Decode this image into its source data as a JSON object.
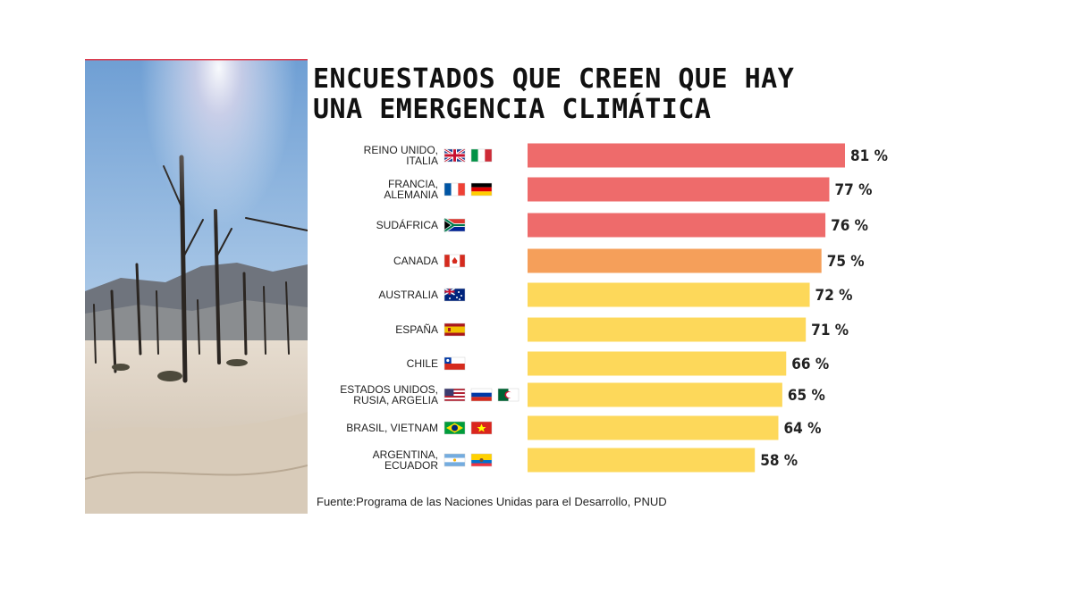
{
  "title_lines": [
    "ENCUESTADOS QUE CREEN QUE HAY",
    "UNA EMERGENCIA CLIMÁTICA"
  ],
  "source": "Fuente:Programa de las Naciones Unidas para el Desarrollo, PNUD",
  "photo": {
    "icon": "dead-trees-desert-photo"
  },
  "chart_data": {
    "type": "bar",
    "orientation": "horizontal",
    "title": "ENCUESTADOS QUE CREEN QUE HAY UNA EMERGENCIA CLIMÁTICA",
    "xlabel": "",
    "ylabel": "",
    "xlim": [
      0,
      81
    ],
    "grid": false,
    "categories": [
      {
        "label_lines": [
          "REINO UNIDO,",
          "ITALIA"
        ],
        "flags": [
          "uk",
          "italy"
        ],
        "value": 81,
        "value_label": "81 %",
        "color": "#EE6B6B"
      },
      {
        "label_lines": [
          "FRANCIA,",
          "ALEMANIA"
        ],
        "flags": [
          "france",
          "germany"
        ],
        "value": 77,
        "value_label": "77 %",
        "color": "#EE6B6B"
      },
      {
        "label_lines": [
          "SUDÁFRICA"
        ],
        "flags": [
          "south-africa"
        ],
        "value": 76,
        "value_label": "76 %",
        "color": "#EE6B6B"
      },
      {
        "label_lines": [
          "CANADA"
        ],
        "flags": [
          "canada"
        ],
        "value": 75,
        "value_label": "75 %",
        "color": "#F59F5A"
      },
      {
        "label_lines": [
          "AUSTRALIA"
        ],
        "flags": [
          "australia"
        ],
        "value": 72,
        "value_label": "72 %",
        "color": "#FDD85A"
      },
      {
        "label_lines": [
          "ESPAÑA"
        ],
        "flags": [
          "spain"
        ],
        "value": 71,
        "value_label": "71 %",
        "color": "#FDD85A"
      },
      {
        "label_lines": [
          "CHILE"
        ],
        "flags": [
          "chile"
        ],
        "value": 66,
        "value_label": "66 %",
        "color": "#FDD85A"
      },
      {
        "label_lines": [
          "ESTADOS UNIDOS,",
          "RUSIA, ARGELIA"
        ],
        "flags": [
          "usa",
          "russia",
          "algeria"
        ],
        "value": 65,
        "value_label": "65 %",
        "color": "#FDD85A"
      },
      {
        "label_lines": [
          "BRASIL, VIETNAM"
        ],
        "flags": [
          "brazil",
          "vietnam"
        ],
        "value": 64,
        "value_label": "64 %",
        "color": "#FDD85A"
      },
      {
        "label_lines": [
          "ARGENTINA,",
          "ECUADOR"
        ],
        "flags": [
          "argentina",
          "ecuador"
        ],
        "value": 58,
        "value_label": "58 %",
        "color": "#FDD85A"
      }
    ]
  }
}
